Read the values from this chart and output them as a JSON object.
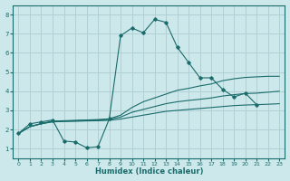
{
  "title": "",
  "xlabel": "Humidex (Indice chaleur)",
  "bg_color": "#cce8eb",
  "grid_color": "#b0d0d5",
  "line_color": "#1a6b6b",
  "xlim": [
    -0.5,
    23.5
  ],
  "ylim": [
    0.5,
    8.5
  ],
  "xticks": [
    0,
    1,
    2,
    3,
    4,
    5,
    6,
    7,
    8,
    9,
    10,
    11,
    12,
    13,
    14,
    15,
    16,
    17,
    18,
    19,
    20,
    21,
    22,
    23
  ],
  "yticks": [
    1,
    2,
    3,
    4,
    5,
    6,
    7,
    8
  ],
  "series_main": {
    "x": [
      0,
      1,
      2,
      3,
      4,
      5,
      6,
      7,
      8,
      9,
      10,
      11,
      12,
      13,
      14,
      15,
      16,
      17,
      18,
      19,
      20,
      21,
      22
    ],
    "y": [
      1.8,
      2.3,
      2.4,
      2.5,
      1.4,
      1.35,
      1.05,
      1.1,
      2.55,
      6.9,
      7.3,
      7.05,
      7.75,
      7.6,
      6.3,
      5.5,
      4.7,
      4.7,
      4.1,
      3.7,
      3.9,
      3.3,
      null
    ]
  },
  "series_smooth": [
    {
      "x": [
        0,
        1,
        2,
        3,
        4,
        5,
        6,
        7,
        8,
        9,
        10,
        11,
        12,
        13,
        14,
        15,
        16,
        17,
        18,
        19,
        20,
        21,
        22,
        23
      ],
      "y": [
        1.8,
        2.15,
        2.3,
        2.4,
        2.42,
        2.43,
        2.45,
        2.46,
        2.48,
        2.55,
        2.65,
        2.75,
        2.85,
        2.95,
        3.0,
        3.05,
        3.1,
        3.15,
        3.2,
        3.25,
        3.28,
        3.3,
        3.32,
        3.35
      ]
    },
    {
      "x": [
        0,
        1,
        2,
        3,
        4,
        5,
        6,
        7,
        8,
        9,
        10,
        11,
        12,
        13,
        14,
        15,
        16,
        17,
        18,
        19,
        20,
        21,
        22,
        23
      ],
      "y": [
        1.8,
        2.15,
        2.3,
        2.42,
        2.44,
        2.46,
        2.48,
        2.5,
        2.53,
        2.65,
        2.9,
        3.05,
        3.2,
        3.35,
        3.45,
        3.52,
        3.58,
        3.65,
        3.75,
        3.82,
        3.88,
        3.9,
        3.95,
        4.0
      ]
    },
    {
      "x": [
        0,
        1,
        2,
        3,
        4,
        5,
        6,
        7,
        8,
        9,
        10,
        11,
        12,
        13,
        14,
        15,
        16,
        17,
        18,
        19,
        20,
        21,
        22,
        23
      ],
      "y": [
        1.8,
        2.15,
        2.32,
        2.44,
        2.46,
        2.48,
        2.5,
        2.52,
        2.56,
        2.75,
        3.15,
        3.45,
        3.65,
        3.85,
        4.05,
        4.15,
        4.28,
        4.38,
        4.55,
        4.65,
        4.72,
        4.75,
        4.78,
        4.78
      ]
    }
  ]
}
